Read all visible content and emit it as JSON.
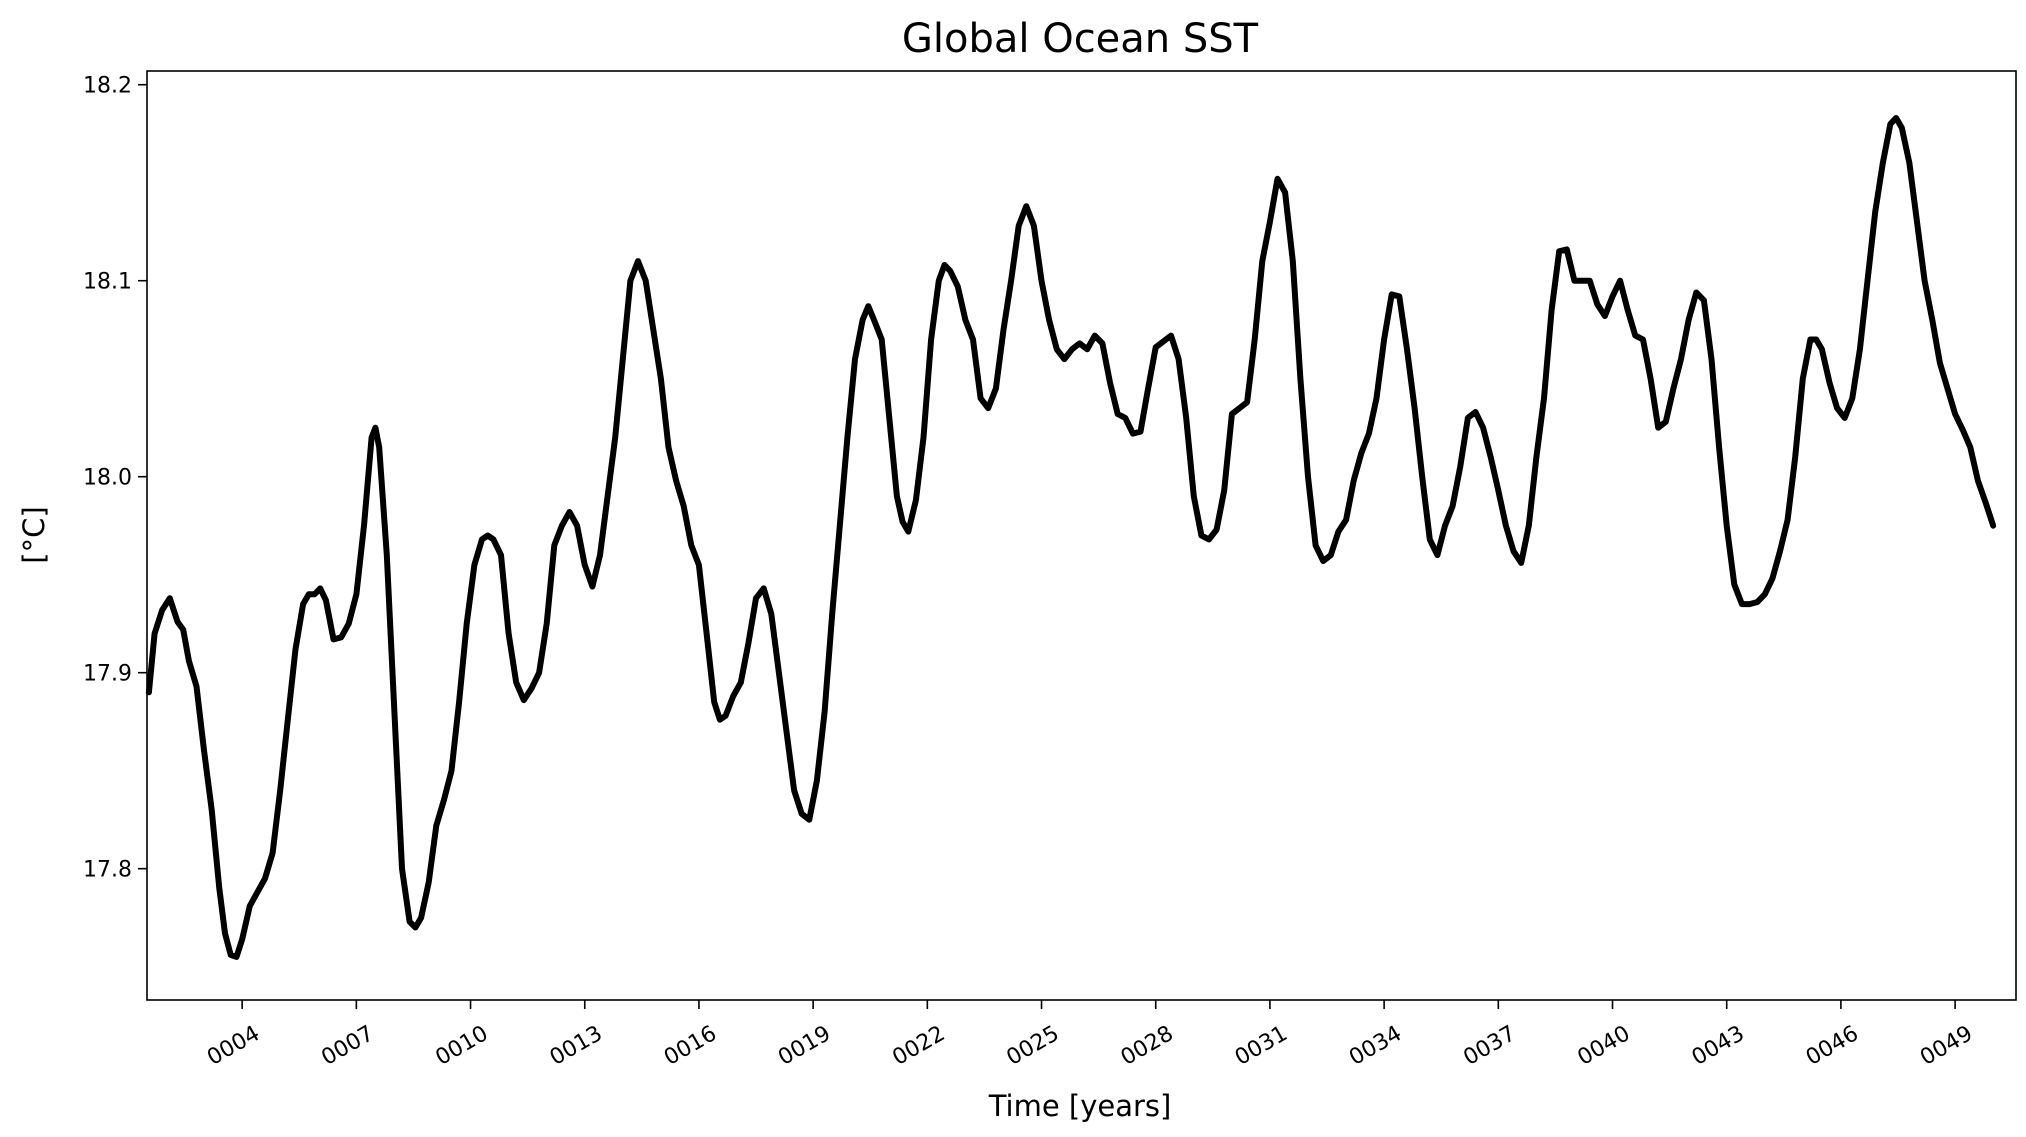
{
  "chart_data": {
    "type": "line",
    "title": "Global Ocean SST",
    "xlabel": "Time [years]",
    "ylabel": "[°C]",
    "xlim": [
      1.5,
      50.6
    ],
    "ylim": [
      17.733,
      18.207
    ],
    "x_ticks": [
      {
        "value": 4,
        "label": "0004"
      },
      {
        "value": 7,
        "label": "0007"
      },
      {
        "value": 10,
        "label": "0010"
      },
      {
        "value": 13,
        "label": "0013"
      },
      {
        "value": 16,
        "label": "0016"
      },
      {
        "value": 19,
        "label": "0019"
      },
      {
        "value": 22,
        "label": "0022"
      },
      {
        "value": 25,
        "label": "0025"
      },
      {
        "value": 28,
        "label": "0028"
      },
      {
        "value": 31,
        "label": "0031"
      },
      {
        "value": 34,
        "label": "0034"
      },
      {
        "value": 37,
        "label": "0037"
      },
      {
        "value": 40,
        "label": "0040"
      },
      {
        "value": 43,
        "label": "0043"
      },
      {
        "value": 46,
        "label": "0046"
      },
      {
        "value": 49,
        "label": "0049"
      }
    ],
    "y_ticks": [
      {
        "value": 17.8,
        "label": "17.8"
      },
      {
        "value": 17.9,
        "label": "17.9"
      },
      {
        "value": 18.0,
        "label": "18.0"
      },
      {
        "value": 18.1,
        "label": "18.1"
      },
      {
        "value": 18.2,
        "label": "18.2"
      }
    ],
    "grid": false,
    "line_color": "#000000",
    "series": [
      {
        "name": "Global Ocean SST",
        "points": [
          [
            1.55,
            17.89
          ],
          [
            1.7,
            17.92
          ],
          [
            1.9,
            17.932
          ],
          [
            2.1,
            17.938
          ],
          [
            2.3,
            17.926
          ],
          [
            2.45,
            17.922
          ],
          [
            2.6,
            17.906
          ],
          [
            2.8,
            17.893
          ],
          [
            3.0,
            17.86
          ],
          [
            3.2,
            17.83
          ],
          [
            3.4,
            17.79
          ],
          [
            3.55,
            17.767
          ],
          [
            3.7,
            17.756
          ],
          [
            3.85,
            17.755
          ],
          [
            4.0,
            17.764
          ],
          [
            4.2,
            17.781
          ],
          [
            4.4,
            17.788
          ],
          [
            4.6,
            17.795
          ],
          [
            4.8,
            17.808
          ],
          [
            5.0,
            17.84
          ],
          [
            5.2,
            17.876
          ],
          [
            5.4,
            17.912
          ],
          [
            5.6,
            17.935
          ],
          [
            5.75,
            17.94
          ],
          [
            5.9,
            17.94
          ],
          [
            6.05,
            17.943
          ],
          [
            6.2,
            17.937
          ],
          [
            6.4,
            17.917
          ],
          [
            6.6,
            17.918
          ],
          [
            6.8,
            17.925
          ],
          [
            7.0,
            17.94
          ],
          [
            7.2,
            17.975
          ],
          [
            7.4,
            18.02
          ],
          [
            7.5,
            18.025
          ],
          [
            7.6,
            18.015
          ],
          [
            7.8,
            17.96
          ],
          [
            8.0,
            17.88
          ],
          [
            8.2,
            17.8
          ],
          [
            8.4,
            17.773
          ],
          [
            8.55,
            17.77
          ],
          [
            8.7,
            17.775
          ],
          [
            8.9,
            17.793
          ],
          [
            9.1,
            17.822
          ],
          [
            9.3,
            17.835
          ],
          [
            9.5,
            17.85
          ],
          [
            9.7,
            17.885
          ],
          [
            9.9,
            17.925
          ],
          [
            10.1,
            17.955
          ],
          [
            10.3,
            17.968
          ],
          [
            10.45,
            17.97
          ],
          [
            10.6,
            17.968
          ],
          [
            10.8,
            17.96
          ],
          [
            11.0,
            17.92
          ],
          [
            11.2,
            17.895
          ],
          [
            11.4,
            17.886
          ],
          [
            11.6,
            17.892
          ],
          [
            11.8,
            17.9
          ],
          [
            12.0,
            17.925
          ],
          [
            12.2,
            17.965
          ],
          [
            12.4,
            17.975
          ],
          [
            12.6,
            17.982
          ],
          [
            12.8,
            17.975
          ],
          [
            13.0,
            17.955
          ],
          [
            13.2,
            17.944
          ],
          [
            13.4,
            17.96
          ],
          [
            13.6,
            17.99
          ],
          [
            13.8,
            18.02
          ],
          [
            14.0,
            18.06
          ],
          [
            14.2,
            18.1
          ],
          [
            14.4,
            18.11
          ],
          [
            14.6,
            18.1
          ],
          [
            14.8,
            18.075
          ],
          [
            15.0,
            18.05
          ],
          [
            15.2,
            18.015
          ],
          [
            15.4,
            17.998
          ],
          [
            15.6,
            17.985
          ],
          [
            15.8,
            17.965
          ],
          [
            16.0,
            17.955
          ],
          [
            16.2,
            17.92
          ],
          [
            16.4,
            17.885
          ],
          [
            16.55,
            17.876
          ],
          [
            16.7,
            17.878
          ],
          [
            16.9,
            17.888
          ],
          [
            17.1,
            17.895
          ],
          [
            17.3,
            17.915
          ],
          [
            17.5,
            17.938
          ],
          [
            17.7,
            17.943
          ],
          [
            17.9,
            17.93
          ],
          [
            18.1,
            17.9
          ],
          [
            18.3,
            17.87
          ],
          [
            18.5,
            17.84
          ],
          [
            18.7,
            17.828
          ],
          [
            18.9,
            17.825
          ],
          [
            19.1,
            17.845
          ],
          [
            19.3,
            17.88
          ],
          [
            19.5,
            17.93
          ],
          [
            19.7,
            17.975
          ],
          [
            19.9,
            18.02
          ],
          [
            20.1,
            18.06
          ],
          [
            20.3,
            18.08
          ],
          [
            20.45,
            18.087
          ],
          [
            20.6,
            18.08
          ],
          [
            20.8,
            18.07
          ],
          [
            21.0,
            18.03
          ],
          [
            21.2,
            17.99
          ],
          [
            21.35,
            17.977
          ],
          [
            21.5,
            17.972
          ],
          [
            21.7,
            17.988
          ],
          [
            21.9,
            18.02
          ],
          [
            22.1,
            18.07
          ],
          [
            22.3,
            18.1
          ],
          [
            22.45,
            18.108
          ],
          [
            22.6,
            18.105
          ],
          [
            22.8,
            18.097
          ],
          [
            23.0,
            18.08
          ],
          [
            23.2,
            18.07
          ],
          [
            23.4,
            18.04
          ],
          [
            23.6,
            18.035
          ],
          [
            23.8,
            18.045
          ],
          [
            24.0,
            18.075
          ],
          [
            24.2,
            18.1
          ],
          [
            24.4,
            18.128
          ],
          [
            24.6,
            18.138
          ],
          [
            24.8,
            18.128
          ],
          [
            25.0,
            18.1
          ],
          [
            25.2,
            18.08
          ],
          [
            25.4,
            18.065
          ],
          [
            25.6,
            18.06
          ],
          [
            25.8,
            18.065
          ],
          [
            26.0,
            18.068
          ],
          [
            26.2,
            18.065
          ],
          [
            26.4,
            18.072
          ],
          [
            26.6,
            18.068
          ],
          [
            26.8,
            18.048
          ],
          [
            27.0,
            18.032
          ],
          [
            27.2,
            18.03
          ],
          [
            27.4,
            18.022
          ],
          [
            27.6,
            18.023
          ],
          [
            27.8,
            18.045
          ],
          [
            28.0,
            18.066
          ],
          [
            28.2,
            18.069
          ],
          [
            28.4,
            18.072
          ],
          [
            28.6,
            18.06
          ],
          [
            28.8,
            18.03
          ],
          [
            29.0,
            17.99
          ],
          [
            29.2,
            17.97
          ],
          [
            29.4,
            17.968
          ],
          [
            29.6,
            17.973
          ],
          [
            29.8,
            17.993
          ],
          [
            30.0,
            18.032
          ],
          [
            30.2,
            18.035
          ],
          [
            30.4,
            18.038
          ],
          [
            30.6,
            18.07
          ],
          [
            30.8,
            18.11
          ],
          [
            31.0,
            18.13
          ],
          [
            31.2,
            18.152
          ],
          [
            31.4,
            18.145
          ],
          [
            31.6,
            18.11
          ],
          [
            31.8,
            18.05
          ],
          [
            32.0,
            18.0
          ],
          [
            32.2,
            17.965
          ],
          [
            32.4,
            17.957
          ],
          [
            32.6,
            17.96
          ],
          [
            32.8,
            17.972
          ],
          [
            33.0,
            17.978
          ],
          [
            33.2,
            17.998
          ],
          [
            33.4,
            18.012
          ],
          [
            33.6,
            18.022
          ],
          [
            33.8,
            18.04
          ],
          [
            34.0,
            18.07
          ],
          [
            34.2,
            18.093
          ],
          [
            34.4,
            18.092
          ],
          [
            34.6,
            18.065
          ],
          [
            34.8,
            18.035
          ],
          [
            35.0,
            18.0
          ],
          [
            35.2,
            17.968
          ],
          [
            35.4,
            17.96
          ],
          [
            35.6,
            17.975
          ],
          [
            35.8,
            17.985
          ],
          [
            36.0,
            18.005
          ],
          [
            36.2,
            18.03
          ],
          [
            36.4,
            18.033
          ],
          [
            36.6,
            18.025
          ],
          [
            36.8,
            18.01
          ],
          [
            37.0,
            17.993
          ],
          [
            37.2,
            17.975
          ],
          [
            37.4,
            17.962
          ],
          [
            37.6,
            17.956
          ],
          [
            37.8,
            17.975
          ],
          [
            38.0,
            18.01
          ],
          [
            38.2,
            18.04
          ],
          [
            38.4,
            18.085
          ],
          [
            38.6,
            18.115
          ],
          [
            38.8,
            18.116
          ],
          [
            39.0,
            18.1
          ],
          [
            39.2,
            18.1
          ],
          [
            39.4,
            18.1
          ],
          [
            39.6,
            18.088
          ],
          [
            39.8,
            18.082
          ],
          [
            40.0,
            18.092
          ],
          [
            40.2,
            18.1
          ],
          [
            40.4,
            18.085
          ],
          [
            40.6,
            18.072
          ],
          [
            40.8,
            18.07
          ],
          [
            41.0,
            18.05
          ],
          [
            41.2,
            18.025
          ],
          [
            41.4,
            18.028
          ],
          [
            41.6,
            18.045
          ],
          [
            41.8,
            18.06
          ],
          [
            42.0,
            18.08
          ],
          [
            42.2,
            18.094
          ],
          [
            42.4,
            18.09
          ],
          [
            42.6,
            18.06
          ],
          [
            42.8,
            18.015
          ],
          [
            43.0,
            17.975
          ],
          [
            43.2,
            17.945
          ],
          [
            43.4,
            17.935
          ],
          [
            43.6,
            17.935
          ],
          [
            43.8,
            17.936
          ],
          [
            44.0,
            17.94
          ],
          [
            44.2,
            17.948
          ],
          [
            44.4,
            17.962
          ],
          [
            44.6,
            17.978
          ],
          [
            44.8,
            18.01
          ],
          [
            45.0,
            18.05
          ],
          [
            45.2,
            18.07
          ],
          [
            45.35,
            18.07
          ],
          [
            45.5,
            18.065
          ],
          [
            45.7,
            18.048
          ],
          [
            45.9,
            18.035
          ],
          [
            46.1,
            18.03
          ],
          [
            46.3,
            18.04
          ],
          [
            46.5,
            18.065
          ],
          [
            46.7,
            18.1
          ],
          [
            46.9,
            18.135
          ],
          [
            47.1,
            18.16
          ],
          [
            47.3,
            18.18
          ],
          [
            47.45,
            18.183
          ],
          [
            47.6,
            18.178
          ],
          [
            47.8,
            18.16
          ],
          [
            48.0,
            18.13
          ],
          [
            48.2,
            18.1
          ],
          [
            48.4,
            18.08
          ],
          [
            48.6,
            18.058
          ],
          [
            48.8,
            18.045
          ],
          [
            49.0,
            18.032
          ],
          [
            49.2,
            18.024
          ],
          [
            49.4,
            18.015
          ],
          [
            49.6,
            17.998
          ],
          [
            49.8,
            17.987
          ],
          [
            50.0,
            17.975
          ]
        ]
      }
    ]
  }
}
